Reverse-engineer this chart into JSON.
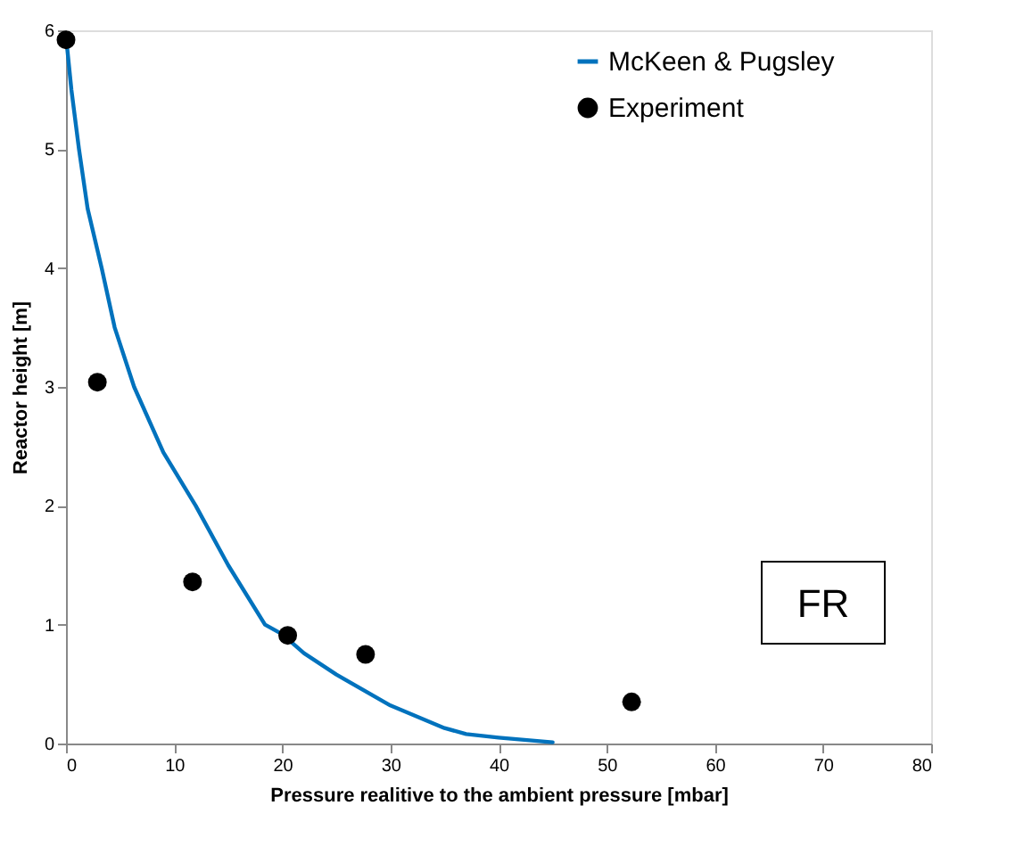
{
  "chart_data": {
    "type": "line",
    "xlabel": "Pressure realitive to the ambient pressure [mbar]",
    "ylabel": "Reactor height [m]",
    "xlim": [
      0,
      80
    ],
    "ylim": [
      0,
      6
    ],
    "xticks": [
      0,
      10,
      20,
      30,
      40,
      50,
      60,
      70,
      80
    ],
    "yticks": [
      0,
      1,
      2,
      3,
      4,
      5,
      6
    ],
    "grid": false,
    "legend": "top right",
    "annotations": [
      "FR"
    ],
    "series": [
      {
        "name": "McKeen & Pugsley",
        "type": "line",
        "color": "#0072bd",
        "marker": "none",
        "line_style": "solid",
        "x": [
          0,
          0.5,
          1.2,
          2,
          3.3,
          4.5,
          6.3,
          9,
          12,
          15,
          18.4,
          20,
          22,
          25,
          30,
          35,
          37,
          40,
          45
        ],
        "values": [
          5.95,
          5.5,
          5,
          4.5,
          4,
          3.5,
          3,
          2.45,
          2,
          1.5,
          1,
          0.92,
          0.76,
          0.58,
          0.32,
          0.13,
          0.08,
          0.05,
          0.01
        ]
      },
      {
        "name": "Experiment",
        "type": "scatter",
        "color": "#000000",
        "marker": "circle",
        "x": [
          0,
          2.9,
          11.7,
          20.5,
          27.7,
          52.3
        ],
        "values": [
          5.92,
          3.04,
          1.36,
          0.91,
          0.75,
          0.35
        ]
      }
    ]
  }
}
